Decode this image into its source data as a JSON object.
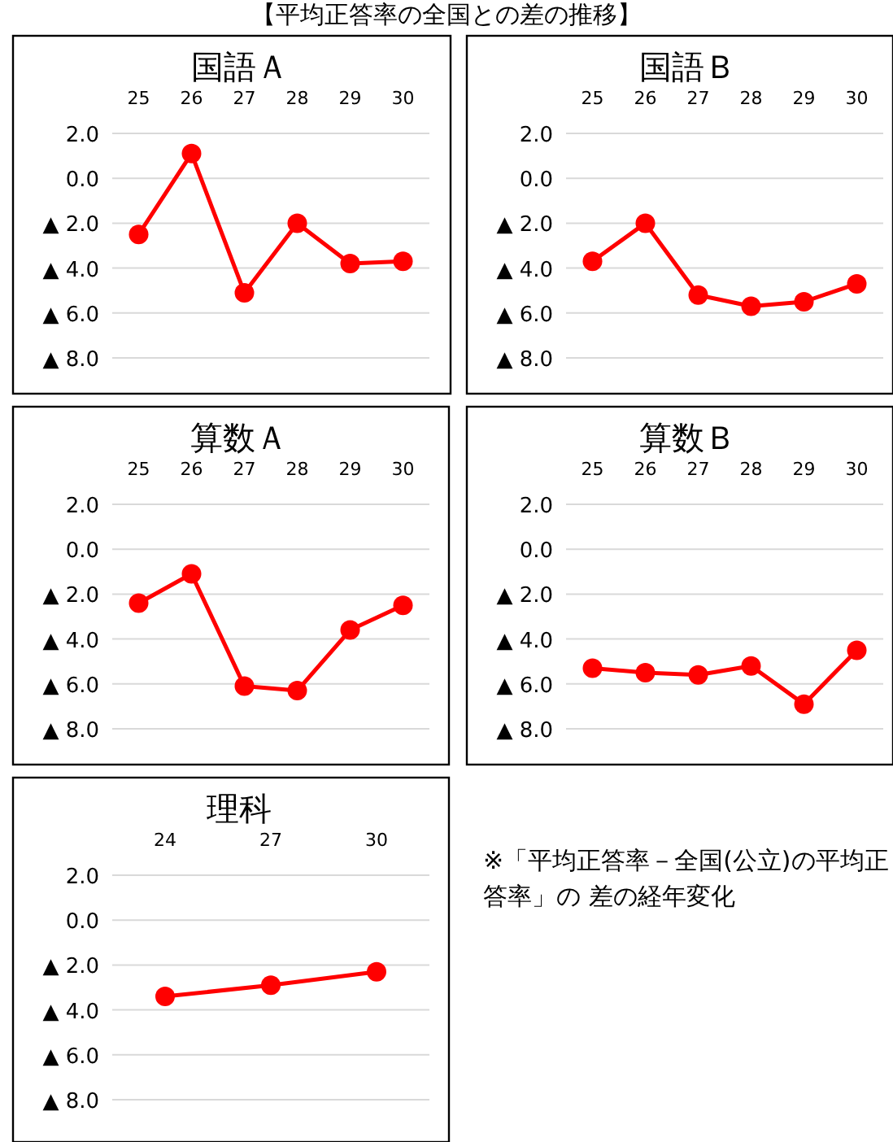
{
  "chart_data": [
    {
      "type": "line",
      "title": "国語Ａ",
      "categories": [
        "25",
        "26",
        "27",
        "28",
        "29",
        "30"
      ],
      "values": [
        -2.5,
        1.1,
        -5.1,
        -2.0,
        -3.8,
        -3.7
      ],
      "color": "#ff0000",
      "marker": "circle",
      "grid": "y",
      "ylim": [
        -8,
        2
      ],
      "yticks": [
        {
          "value": 2,
          "label": "2.0"
        },
        {
          "value": 0,
          "label": "0.0"
        },
        {
          "value": -2,
          "label": "▲ 2.0"
        },
        {
          "value": -4,
          "label": "▲ 4.0"
        },
        {
          "value": -6,
          "label": "▲ 6.0"
        },
        {
          "value": -8,
          "label": "▲ 8.0"
        }
      ]
    },
    {
      "type": "line",
      "title": "国語Ｂ",
      "categories": [
        "25",
        "26",
        "27",
        "28",
        "29",
        "30"
      ],
      "values": [
        -3.7,
        -2.0,
        -5.2,
        -5.7,
        -5.5,
        -4.7
      ],
      "color": "#ff0000",
      "marker": "circle",
      "grid": "y",
      "ylim": [
        -8,
        2
      ],
      "yticks": [
        {
          "value": 2,
          "label": "2.0"
        },
        {
          "value": 0,
          "label": "0.0"
        },
        {
          "value": -2,
          "label": "▲ 2.0"
        },
        {
          "value": -4,
          "label": "▲ 4.0"
        },
        {
          "value": -6,
          "label": "▲ 6.0"
        },
        {
          "value": -8,
          "label": "▲ 8.0"
        }
      ]
    },
    {
      "type": "line",
      "title": "算数Ａ",
      "categories": [
        "25",
        "26",
        "27",
        "28",
        "29",
        "30"
      ],
      "values": [
        -2.4,
        -1.1,
        -6.1,
        -6.3,
        -3.6,
        -2.5
      ],
      "color": "#ff0000",
      "marker": "circle",
      "grid": "y",
      "ylim": [
        -8,
        2
      ],
      "yticks": [
        {
          "value": 2,
          "label": "2.0"
        },
        {
          "value": 0,
          "label": "0.0"
        },
        {
          "value": -2,
          "label": "▲ 2.0"
        },
        {
          "value": -4,
          "label": "▲ 4.0"
        },
        {
          "value": -6,
          "label": "▲ 6.0"
        },
        {
          "value": -8,
          "label": "▲ 8.0"
        }
      ]
    },
    {
      "type": "line",
      "title": "算数Ｂ",
      "categories": [
        "25",
        "26",
        "27",
        "28",
        "29",
        "30"
      ],
      "values": [
        -5.3,
        -5.5,
        -5.6,
        -5.2,
        -6.9,
        -4.5
      ],
      "color": "#ff0000",
      "marker": "circle",
      "grid": "y",
      "ylim": [
        -8,
        2
      ],
      "yticks": [
        {
          "value": 2,
          "label": "2.0"
        },
        {
          "value": 0,
          "label": "0.0"
        },
        {
          "value": -2,
          "label": "▲ 2.0"
        },
        {
          "value": -4,
          "label": "▲ 4.0"
        },
        {
          "value": -6,
          "label": "▲ 6.0"
        },
        {
          "value": -8,
          "label": "▲ 8.0"
        }
      ]
    },
    {
      "type": "line",
      "title": "理科",
      "categories": [
        "24",
        "27",
        "30"
      ],
      "values": [
        -3.4,
        -2.9,
        -2.3
      ],
      "color": "#ff0000",
      "marker": "circle",
      "grid": "y",
      "ylim": [
        -8,
        2
      ],
      "yticks": [
        {
          "value": 2,
          "label": "2.0"
        },
        {
          "value": 0,
          "label": "0.0"
        },
        {
          "value": -2,
          "label": "▲ 2.0"
        },
        {
          "value": -4,
          "label": "▲ 4.0"
        },
        {
          "value": -6,
          "label": "▲ 6.0"
        },
        {
          "value": -8,
          "label": "▲ 8.0"
        }
      ]
    },
    {
      "type": "other",
      "title": "【平均正答率の全国との差の推移】",
      "annotations": [
        "※「平均正答率－全国(公立)の平均正答率」の 差の経年変化"
      ]
    }
  ]
}
